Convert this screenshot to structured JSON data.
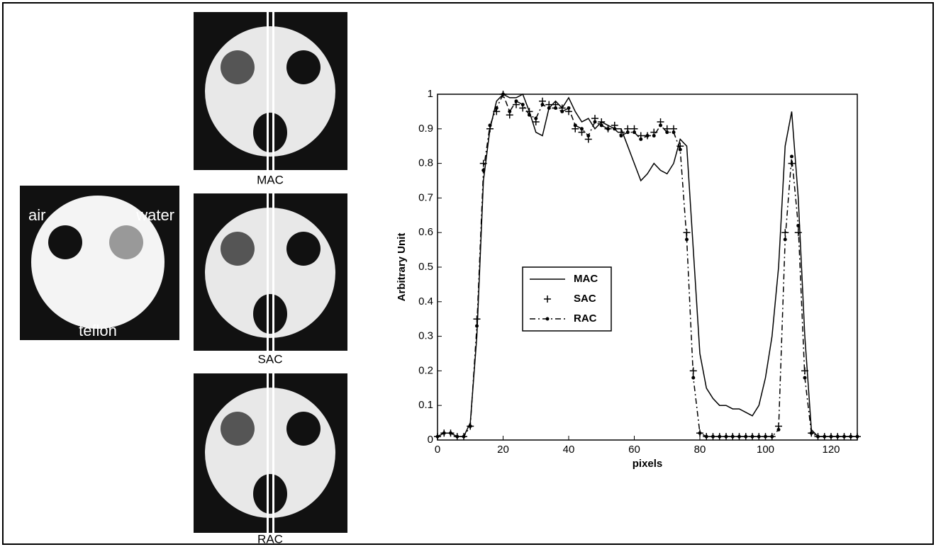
{
  "images": {
    "phantom": {
      "labels": [
        "air",
        "water",
        "teflon"
      ]
    },
    "captions": [
      "MAC",
      "SAC",
      "RAC"
    ]
  },
  "chart_data": {
    "type": "line",
    "x_label": "pixels",
    "y_label": "Arbitrary Unit",
    "x": [
      0,
      2,
      4,
      6,
      8,
      10,
      12,
      14,
      16,
      18,
      20,
      22,
      24,
      26,
      28,
      30,
      32,
      34,
      36,
      38,
      40,
      42,
      44,
      46,
      48,
      50,
      52,
      54,
      56,
      58,
      60,
      62,
      64,
      66,
      68,
      70,
      72,
      74,
      76,
      78,
      80,
      82,
      84,
      86,
      88,
      90,
      92,
      94,
      96,
      98,
      100,
      102,
      104,
      106,
      108,
      110,
      112,
      114,
      116,
      118,
      120,
      122,
      124,
      126,
      128
    ],
    "series": [
      {
        "name": "MAC",
        "color": "#000000",
        "linestyle": "solid",
        "marker": "none",
        "values": [
          0.01,
          0.02,
          0.02,
          0.01,
          0.01,
          0.05,
          0.3,
          0.75,
          0.9,
          0.98,
          1,
          0.99,
          0.99,
          1,
          0.95,
          0.89,
          0.88,
          0.96,
          0.98,
          0.96,
          0.99,
          0.95,
          0.92,
          0.93,
          0.9,
          0.92,
          0.91,
          0.9,
          0.9,
          0.85,
          0.8,
          0.75,
          0.77,
          0.8,
          0.78,
          0.77,
          0.8,
          0.87,
          0.85,
          0.55,
          0.25,
          0.15,
          0.12,
          0.1,
          0.1,
          0.09,
          0.09,
          0.08,
          0.07,
          0.1,
          0.18,
          0.3,
          0.5,
          0.85,
          0.95,
          0.7,
          0.3,
          0.03,
          0.01,
          0.01,
          0.01,
          0.01,
          0.01,
          0.01,
          0.01
        ]
      },
      {
        "name": "SAC",
        "color": "#000000",
        "linestyle": "none",
        "marker": "plus",
        "values": [
          0.01,
          0.02,
          0.02,
          0.01,
          0.01,
          0.04,
          0.35,
          0.8,
          0.9,
          0.95,
          1,
          0.94,
          0.97,
          0.96,
          0.95,
          0.92,
          0.98,
          0.97,
          0.97,
          0.96,
          0.95,
          0.9,
          0.89,
          0.87,
          0.93,
          0.92,
          0.9,
          0.91,
          0.89,
          0.9,
          0.9,
          0.88,
          0.88,
          0.89,
          0.92,
          0.9,
          0.9,
          0.85,
          0.6,
          0.2,
          0.02,
          0.01,
          0.01,
          0.01,
          0.01,
          0.01,
          0.01,
          0.01,
          0.01,
          0.01,
          0.01,
          0.01,
          0.04,
          0.6,
          0.8,
          0.6,
          0.2,
          0.02,
          0.01,
          0.01,
          0.01,
          0.01,
          0.01,
          0.01,
          0.01
        ]
      },
      {
        "name": "RAC",
        "color": "#000000",
        "linestyle": "dashdot",
        "marker": "dot",
        "values": [
          0.01,
          0.02,
          0.02,
          0.01,
          0.01,
          0.04,
          0.33,
          0.78,
          0.91,
          0.96,
          1,
          0.95,
          0.98,
          0.97,
          0.94,
          0.93,
          0.97,
          0.96,
          0.96,
          0.95,
          0.96,
          0.91,
          0.9,
          0.88,
          0.92,
          0.91,
          0.9,
          0.9,
          0.88,
          0.89,
          0.89,
          0.87,
          0.88,
          0.88,
          0.91,
          0.89,
          0.89,
          0.84,
          0.58,
          0.18,
          0.02,
          0.01,
          0.01,
          0.01,
          0.01,
          0.01,
          0.01,
          0.01,
          0.01,
          0.01,
          0.01,
          0.01,
          0.03,
          0.58,
          0.82,
          0.62,
          0.18,
          0.02,
          0.01,
          0.01,
          0.01,
          0.01,
          0.01,
          0.01,
          0.01
        ]
      }
    ],
    "xlim": [
      0,
      128
    ],
    "ylim": [
      0,
      1
    ],
    "xticks": [
      0,
      20,
      40,
      60,
      80,
      100,
      120
    ],
    "yticks": [
      0,
      0.1,
      0.2,
      0.3,
      0.4,
      0.5,
      0.6,
      0.7,
      0.8,
      0.9,
      1
    ],
    "legend": "center-left"
  }
}
